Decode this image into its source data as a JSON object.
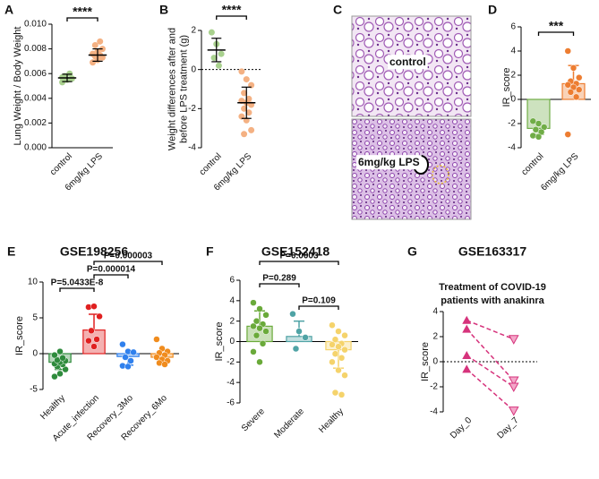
{
  "chart_data": [
    {
      "type": "dot",
      "letter": "A",
      "ylabel": [
        "Lung Weight / Body Weight"
      ],
      "categories": [
        "control",
        "6mg/kg LPS"
      ],
      "groups": [
        {
          "color": "#a9d18e",
          "points": [
            0.0053,
            0.0055,
            0.0056,
            0.0058,
            0.006,
            0.0057
          ],
          "mean": 0.00565,
          "sd": 0.0003
        },
        {
          "color": "#f4b183",
          "points": [
            0.0069,
            0.0071,
            0.0073,
            0.0074,
            0.0075,
            0.0076,
            0.0078,
            0.008,
            0.0083,
            0.0086
          ],
          "mean": 0.0075,
          "sd": 0.0005
        }
      ],
      "ylim": [
        0,
        0.01
      ],
      "yticks": [
        {
          "value": 0,
          "label": "0.000"
        },
        {
          "value": 0.002,
          "label": "0.002"
        },
        {
          "value": 0.004,
          "label": "0.004"
        },
        {
          "value": 0.006,
          "label": "0.006"
        },
        {
          "value": 0.008,
          "label": "0.008"
        },
        {
          "value": 0.01,
          "label": "0.010"
        }
      ],
      "zero_line": "solid",
      "brackets": [
        {
          "label": "****",
          "pair": [
            0,
            1
          ]
        }
      ]
    },
    {
      "type": "dot",
      "letter": "B",
      "ylabel": [
        "Weight differences after and",
        "before LPS treatment (g)"
      ],
      "categories": [
        "control",
        "6mg/kg LPS"
      ],
      "groups": [
        {
          "color": "#a9d18e",
          "points": [
            1.9,
            1.3,
            0.8,
            0.6,
            0.2
          ],
          "mean": 1.0,
          "sd": 0.6
        },
        {
          "color": "#f4b183",
          "points": [
            -0.1,
            -0.5,
            -0.8,
            -1.2,
            -1.5,
            -1.6,
            -1.7,
            -1.8,
            -2.0,
            -2.2,
            -2.4,
            -2.6,
            -3.1,
            -3.3
          ],
          "mean": -1.7,
          "sd": 0.8
        }
      ],
      "ylim": [
        -4,
        2
      ],
      "yticks": [
        -4,
        -2,
        0,
        2
      ],
      "zero_line": "dotted",
      "brackets": [
        {
          "label": "****",
          "pair": [
            0,
            1
          ]
        }
      ]
    },
    {
      "type": "image",
      "letter": "C",
      "labels": [
        "control",
        "6mg/kg LPS"
      ]
    },
    {
      "type": "bar",
      "letter": "D",
      "ylabel": [
        "IR_score"
      ],
      "categories": [
        "control",
        "6mg/kg LPS"
      ],
      "groups": [
        {
          "color": "#70ad47",
          "points": [
            -1.8,
            -2.0,
            -2.3,
            -2.5,
            -2.7,
            -3.0,
            -3.1
          ],
          "mean": -2.4,
          "sd": 0.5
        },
        {
          "color": "#ed7d31",
          "points": [
            4.0,
            2.6,
            1.8,
            1.5,
            1.3,
            1.2,
            1.0,
            0.8,
            0.6,
            0.2,
            -2.9
          ],
          "mean": 1.3,
          "sd": 1.5
        }
      ],
      "ylim": [
        -4,
        6
      ],
      "yticks": [
        -4,
        -2,
        0,
        2,
        4,
        6
      ],
      "zero_line": "solid",
      "brackets": [
        {
          "label": "***",
          "pair": [
            0,
            1
          ]
        }
      ]
    },
    {
      "type": "bar",
      "letter": "E",
      "title": "GSE198256",
      "ylabel": [
        "IR_score"
      ],
      "categories": [
        "Healthy",
        "Acute_infection",
        "Recovery_3Mo",
        "Recovery_6Mo"
      ],
      "groups": [
        {
          "color": "#2e8b3c",
          "points": [
            -3.2,
            -2.8,
            -2.2,
            -1.8,
            -1.5,
            -1.4,
            -1.2,
            -1.0,
            -0.9,
            -0.6,
            -0.2,
            0.3
          ],
          "mean": -1.2,
          "sd": 1.0
        },
        {
          "color": "#e02020",
          "points": [
            6.5,
            6.6,
            5.2,
            3.2,
            2.0,
            1.8,
            1.0
          ],
          "mean": 3.3,
          "sd": 2.2
        },
        {
          "color": "#2f80ed",
          "points": [
            1.3,
            0.3,
            0.2,
            -0.5,
            -1.0,
            -1.7,
            -1.8
          ],
          "mean": -0.4,
          "sd": 1.2
        },
        {
          "color": "#f08c1e",
          "points": [
            2.0,
            0.7,
            0.3,
            0.1,
            -0.2,
            -0.5,
            -0.8,
            -1.0,
            -1.3,
            -1.5
          ],
          "mean": -0.5,
          "sd": 1.0
        }
      ],
      "ylim": [
        -5,
        10
      ],
      "yticks": [
        -5,
        0,
        5,
        10
      ],
      "zero_line": "solid",
      "brackets": [
        {
          "label": "P=5.0433E-8",
          "pair": [
            0,
            1
          ]
        },
        {
          "label": "P=0.000014",
          "pair": [
            1,
            2
          ]
        },
        {
          "label": "P=0.000003",
          "pair": [
            1,
            3
          ]
        }
      ]
    },
    {
      "type": "bar",
      "letter": "F",
      "title": "GSE152418",
      "ylabel": [
        "IR_score"
      ],
      "categories": [
        "Severe",
        "Moderate",
        "Healthy"
      ],
      "groups": [
        {
          "color": "#6aaa3a",
          "points": [
            3.8,
            3.2,
            2.6,
            2.0,
            1.7,
            1.5,
            1.3,
            1.0,
            0.6,
            -0.2,
            -1.0,
            -2.0
          ],
          "mean": 1.5,
          "sd": 1.5
        },
        {
          "color": "#4fa3a5",
          "points": [
            2.7,
            1.0,
            0.4,
            -0.7
          ],
          "mean": 0.5,
          "sd": 1.5
        },
        {
          "color": "#f5d36b",
          "points": [
            1.6,
            1.0,
            0.6,
            0.2,
            -0.2,
            -0.3,
            -0.5,
            -0.8,
            -1.2,
            -1.6,
            -2.0,
            -2.8,
            -3.3,
            -5.0,
            -5.2
          ],
          "mean": -0.8,
          "sd": 1.8
        }
      ],
      "ylim": [
        -6,
        6
      ],
      "yticks": [
        -6,
        -4,
        -2,
        0,
        2,
        4,
        6
      ],
      "zero_line": "solid",
      "brackets": [
        {
          "label": "P=0.109",
          "pair": [
            1,
            2
          ]
        },
        {
          "label": "P=0.289",
          "pair": [
            0,
            1
          ]
        },
        {
          "label": "P=0.0003",
          "pair": [
            0,
            2
          ]
        }
      ]
    },
    {
      "type": "paired",
      "letter": "G",
      "title": "GSE163317",
      "subtitle": [
        "Treatment of COVID-19",
        "patients with anakinra"
      ],
      "ylabel": [
        "IR_score"
      ],
      "categories": [
        "Day_0",
        "Day_7"
      ],
      "groups": [
        {
          "color": "#d6337c",
          "points": [
            3.3,
            2.6,
            0.5,
            -0.6
          ]
        },
        {
          "color": "#d6337c",
          "points": [
            1.8,
            -1.5,
            -2.0,
            -3.9
          ]
        }
      ],
      "ylim": [
        -4,
        4
      ],
      "yticks": [
        -4,
        -2,
        0,
        2,
        4
      ],
      "zero_line": "dotted",
      "brackets": []
    }
  ]
}
